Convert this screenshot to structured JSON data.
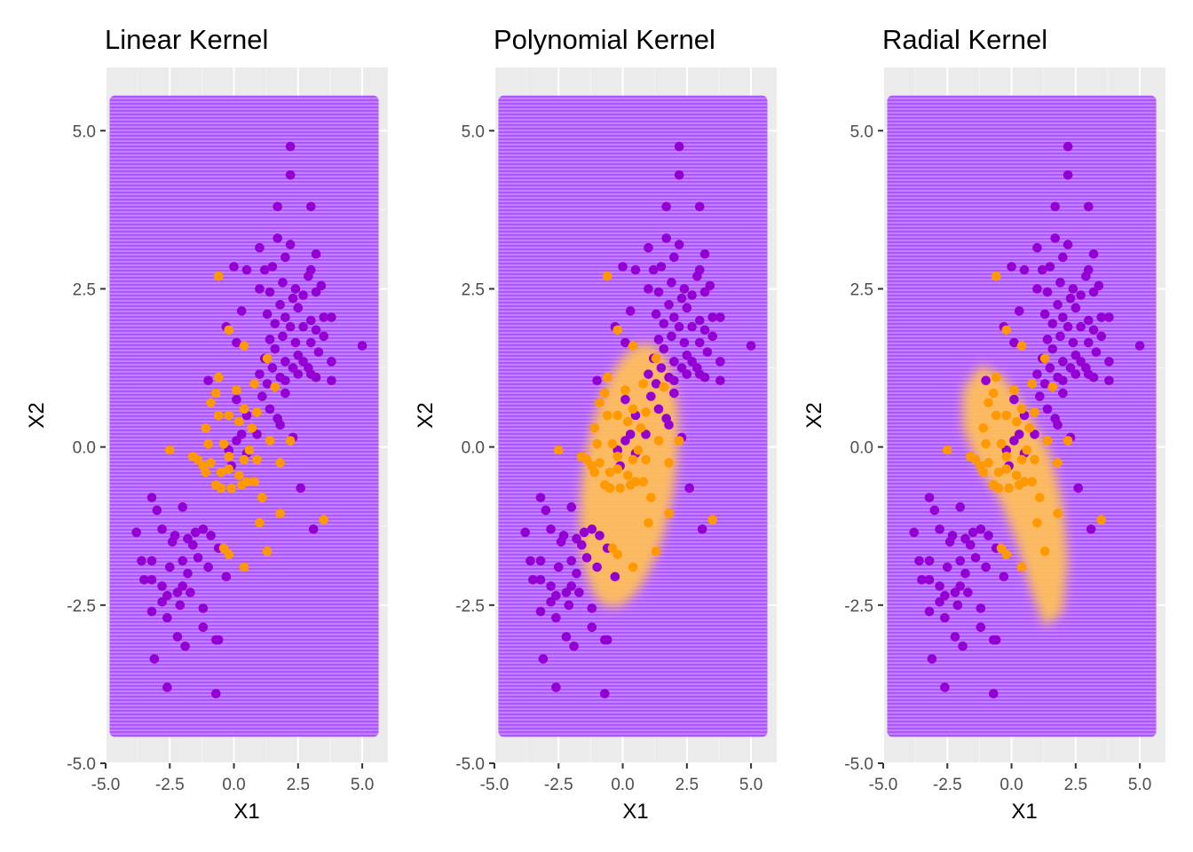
{
  "colors": {
    "panel_background": "#ebebeb",
    "grid_major": "#ffffff",
    "class_purple": "#9400d3",
    "class_orange": "#ff9900",
    "region_purple": "#a855f7",
    "region_orange": "#ffbf5a",
    "tick_text": "#4d4d4d"
  },
  "chart_data": [
    {
      "type": "scatter",
      "title": "Linear Kernel",
      "xlabel": "X1",
      "ylabel": "X2",
      "xlim": [
        -5,
        6
      ],
      "ylim": [
        -5,
        6
      ],
      "x_ticks": [
        -5,
        -2.5,
        0,
        2.5,
        5
      ],
      "x_tick_labels": [
        "-5.0",
        "-2.5",
        "0.0",
        "2.5",
        "5.0"
      ],
      "y_ticks": [
        -5,
        -2.5,
        0,
        2.5,
        5
      ],
      "y_tick_labels": [
        "-5.0",
        "-2.5",
        "0.0",
        "2.5",
        "5.0"
      ],
      "grid": true,
      "decision_region": {
        "background_class": "purple",
        "grid_x_range": [
          -4.5,
          5.5
        ],
        "grid_y_range": [
          -4.5,
          5.5
        ],
        "orange_region": null
      }
    },
    {
      "type": "scatter",
      "title": "Polynomial Kernel",
      "xlabel": "X1",
      "ylabel": "X2",
      "xlim": [
        -5,
        6
      ],
      "ylim": [
        -5,
        6
      ],
      "x_ticks": [
        -5,
        -2.5,
        0,
        2.5,
        5
      ],
      "x_tick_labels": [
        "-5.0",
        "-2.5",
        "0.0",
        "2.5",
        "5.0"
      ],
      "y_ticks": [
        -5,
        -2.5,
        0,
        2.5,
        5
      ],
      "y_tick_labels": [
        "-5.0",
        "-2.5",
        "0.0",
        "2.5",
        "5.0"
      ],
      "grid": true,
      "decision_region": {
        "background_class": "purple",
        "grid_x_range": [
          -4.5,
          5.5
        ],
        "grid_y_range": [
          -4.5,
          5.5
        ],
        "orange_region": {
          "shape": "ellipse",
          "center": [
            0.25,
            -0.45
          ],
          "semi_axis_x": 1.8,
          "semi_axis_y": 2.1,
          "rotation_deg": 8
        }
      }
    },
    {
      "type": "scatter",
      "title": "Radial Kernel",
      "xlabel": "X1",
      "ylabel": "X2",
      "xlim": [
        -5,
        6
      ],
      "ylim": [
        -5,
        6
      ],
      "x_ticks": [
        -5,
        -2.5,
        0,
        2.5,
        5
      ],
      "x_tick_labels": [
        "-5.0",
        "-2.5",
        "0.0",
        "2.5",
        "5.0"
      ],
      "y_ticks": [
        -5,
        -2.5,
        0,
        2.5,
        5
      ],
      "y_tick_labels": [
        "-5.0",
        "-2.5",
        "0.0",
        "2.5",
        "5.0"
      ],
      "grid": true,
      "decision_region": {
        "background_class": "purple",
        "grid_x_range": [
          -4.5,
          5.5
        ],
        "grid_y_range": [
          -4.5,
          5.5
        ],
        "orange_region": {
          "shape": "polygon",
          "vertices": [
            [
              -1.2,
              1.3
            ],
            [
              -0.3,
              1.1
            ],
            [
              0.4,
              0.7
            ],
            [
              0.9,
              0.35
            ],
            [
              1.5,
              -0.1
            ],
            [
              2.0,
              -0.9
            ],
            [
              2.2,
              -1.8
            ],
            [
              2.0,
              -2.6
            ],
            [
              1.3,
              -2.85
            ],
            [
              0.7,
              -2.2
            ],
            [
              0.2,
              -1.5
            ],
            [
              -0.5,
              -0.8
            ],
            [
              -1.3,
              -0.3
            ],
            [
              -1.9,
              0.3
            ],
            [
              -1.9,
              0.9
            ]
          ]
        }
      }
    }
  ],
  "points": {
    "purple": [
      [
        2.2,
        4.75
      ],
      [
        2.2,
        4.3
      ],
      [
        1.7,
        3.8
      ],
      [
        3.0,
        3.8
      ],
      [
        1.7,
        3.3
      ],
      [
        2.2,
        3.2
      ],
      [
        1.0,
        3.15
      ],
      [
        2.0,
        3.0
      ],
      [
        3.2,
        3.05
      ],
      [
        0.0,
        2.85
      ],
      [
        0.5,
        2.8
      ],
      [
        1.2,
        2.8
      ],
      [
        1.5,
        2.85
      ],
      [
        2.9,
        2.7
      ],
      [
        3.0,
        2.8
      ],
      [
        1.9,
        2.6
      ],
      [
        2.4,
        2.5
      ],
      [
        3.4,
        2.55
      ],
      [
        1.0,
        2.5
      ],
      [
        1.4,
        2.45
      ],
      [
        2.3,
        2.35
      ],
      [
        2.7,
        2.4
      ],
      [
        3.2,
        2.45
      ],
      [
        1.8,
        2.25
      ],
      [
        2.5,
        2.2
      ],
      [
        0.3,
        2.15
      ],
      [
        1.3,
        2.1
      ],
      [
        2.0,
        2.05
      ],
      [
        3.0,
        2.0
      ],
      [
        3.5,
        2.05
      ],
      [
        3.8,
        2.05
      ],
      [
        1.6,
        1.95
      ],
      [
        2.2,
        1.9
      ],
      [
        2.7,
        1.9
      ],
      [
        -0.3,
        1.9
      ],
      [
        1.9,
        1.75
      ],
      [
        3.2,
        1.85
      ],
      [
        3.5,
        1.75
      ],
      [
        1.4,
        1.7
      ],
      [
        2.4,
        1.65
      ],
      [
        3.0,
        1.65
      ],
      [
        0.1,
        1.65
      ],
      [
        1.6,
        1.55
      ],
      [
        2.5,
        1.45
      ],
      [
        3.3,
        1.5
      ],
      [
        1.2,
        1.4
      ],
      [
        2.0,
        1.35
      ],
      [
        2.7,
        1.35
      ],
      [
        3.8,
        1.35
      ],
      [
        1.5,
        1.25
      ],
      [
        2.3,
        1.25
      ],
      [
        2.9,
        1.25
      ],
      [
        1.0,
        1.15
      ],
      [
        1.8,
        1.1
      ],
      [
        2.5,
        1.15
      ],
      [
        3.0,
        1.15
      ],
      [
        3.2,
        1.1
      ],
      [
        1.3,
        1.0
      ],
      [
        2.0,
        1.05
      ],
      [
        3.8,
        1.05
      ],
      [
        -1.0,
        1.05
      ],
      [
        1.1,
        0.8
      ],
      [
        2.0,
        0.85
      ],
      [
        0.1,
        0.75
      ],
      [
        1.4,
        0.6
      ],
      [
        0.5,
        0.5
      ],
      [
        1.7,
        0.45
      ],
      [
        1.8,
        0.35
      ],
      [
        0.3,
        0.2
      ],
      [
        0.9,
        0.2
      ],
      [
        2.3,
        0.15
      ],
      [
        0.1,
        0.1
      ],
      [
        -0.2,
        -0.05
      ],
      [
        0.5,
        -0.1
      ],
      [
        -0.1,
        -0.3
      ],
      [
        2.6,
        -0.65
      ],
      [
        -3.2,
        -0.8
      ],
      [
        -3.0,
        -1.0
      ],
      [
        -2.0,
        -0.95
      ],
      [
        -2.8,
        -1.3
      ],
      [
        -2.3,
        -1.4
      ],
      [
        -1.5,
        -1.35
      ],
      [
        -1.2,
        -1.3
      ],
      [
        -3.8,
        -1.35
      ],
      [
        -1.8,
        -1.45
      ],
      [
        -0.9,
        -1.4
      ],
      [
        -2.4,
        -1.5
      ],
      [
        -1.6,
        -1.55
      ],
      [
        3.1,
        -1.3
      ],
      [
        -3.2,
        -1.8
      ],
      [
        -2.0,
        -1.8
      ],
      [
        -1.4,
        -1.75
      ],
      [
        -0.6,
        -1.6
      ],
      [
        -3.6,
        -1.8
      ],
      [
        -2.5,
        -1.9
      ],
      [
        -1.0,
        -1.9
      ],
      [
        -1.8,
        -2.0
      ],
      [
        -3.2,
        -2.1
      ],
      [
        -3.5,
        -2.1
      ],
      [
        -0.3,
        -2.05
      ],
      [
        -2.8,
        -2.2
      ],
      [
        -2.0,
        -2.2
      ],
      [
        -2.2,
        -2.3
      ],
      [
        -1.7,
        -2.3
      ],
      [
        -2.6,
        -2.35
      ],
      [
        -2.8,
        -2.45
      ],
      [
        -2.1,
        -2.5
      ],
      [
        -3.2,
        -2.6
      ],
      [
        -1.2,
        -2.55
      ],
      [
        -2.6,
        -2.7
      ],
      [
        -1.2,
        -2.85
      ],
      [
        -2.2,
        -3.0
      ],
      [
        -0.7,
        -3.05
      ],
      [
        -1.9,
        -3.15
      ],
      [
        -3.1,
        -3.35
      ],
      [
        -2.6,
        -3.8
      ],
      [
        -0.7,
        -3.9
      ],
      [
        -0.6,
        -3.05
      ],
      [
        5.0,
        1.6
      ]
    ],
    "orange": [
      [
        -0.6,
        2.7
      ],
      [
        -0.2,
        1.85
      ],
      [
        0.4,
        1.6
      ],
      [
        1.3,
        1.4
      ],
      [
        -0.6,
        1.1
      ],
      [
        1.6,
        0.95
      ],
      [
        0.8,
        1.0
      ],
      [
        0.1,
        0.9
      ],
      [
        -0.7,
        0.85
      ],
      [
        0.4,
        0.6
      ],
      [
        -0.9,
        0.7
      ],
      [
        0.9,
        0.55
      ],
      [
        -0.2,
        0.5
      ],
      [
        -0.6,
        0.5
      ],
      [
        0.2,
        0.4
      ],
      [
        0.7,
        0.3
      ],
      [
        -1.1,
        0.3
      ],
      [
        2.2,
        0.1
      ],
      [
        -0.4,
        0.05
      ],
      [
        1.4,
        0.1
      ],
      [
        -2.5,
        -0.05
      ],
      [
        -1.0,
        0.05
      ],
      [
        0.6,
        -0.05
      ],
      [
        -1.6,
        -0.15
      ],
      [
        -1.4,
        -0.2
      ],
      [
        -0.2,
        -0.15
      ],
      [
        0.4,
        -0.2
      ],
      [
        0.9,
        -0.2
      ],
      [
        -1.2,
        -0.3
      ],
      [
        -0.9,
        -0.25
      ],
      [
        -0.2,
        -0.35
      ],
      [
        1.8,
        -0.25
      ],
      [
        -1.1,
        -0.4
      ],
      [
        -0.5,
        -0.4
      ],
      [
        0.2,
        -0.45
      ],
      [
        -0.7,
        -0.6
      ],
      [
        0.5,
        -0.55
      ],
      [
        -0.5,
        -0.65
      ],
      [
        0.3,
        -0.6
      ],
      [
        -0.1,
        -0.65
      ],
      [
        0.8,
        -0.55
      ],
      [
        1.1,
        -0.8
      ],
      [
        1.8,
        -1.05
      ],
      [
        1.0,
        -1.2
      ],
      [
        3.5,
        -1.15
      ],
      [
        -0.4,
        -1.6
      ],
      [
        -0.2,
        -1.7
      ],
      [
        1.3,
        -1.65
      ],
      [
        0.4,
        -1.9
      ]
    ]
  }
}
